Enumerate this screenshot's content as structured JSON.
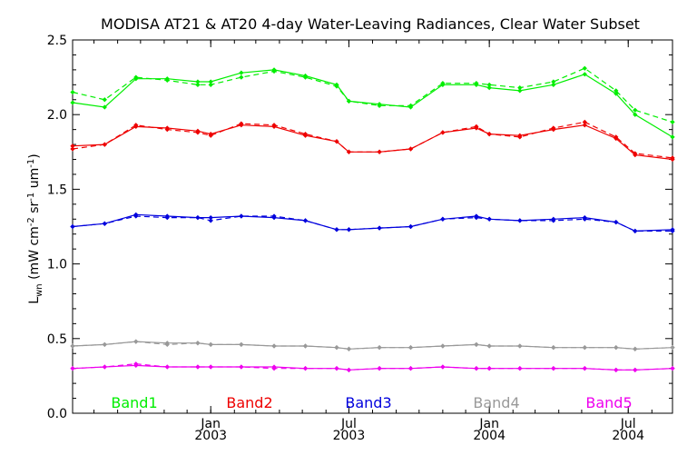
{
  "chart_data": {
    "type": "line",
    "title": "MODISA AT21 & AT20 4-day Water-Leaving Radiances, Clear Water Subset",
    "ylabel_main": "L",
    "ylabel_sub": "wn",
    "ylabel_rest": " (mW cm",
    "ylabel_sup1": "-2",
    "ylabel_mid": " sr",
    "ylabel_sup2": "-1",
    "ylabel_mid2": " um",
    "ylabel_sup3": "-1",
    "ylabel_end": ")",
    "ylim": [
      0.0,
      2.5
    ],
    "yticks": [
      "0.0",
      "0.5",
      "1.0",
      "1.5",
      "2.0",
      "2.5"
    ],
    "xlim": [
      "2002-07-04",
      "2004-08-28"
    ],
    "xticks": [
      {
        "date": "2003-01-01",
        "label1": "Jan",
        "label2": "2003"
      },
      {
        "date": "2003-07-01",
        "label1": "Jul",
        "label2": "2003"
      },
      {
        "date": "2004-01-01",
        "label1": "Jan",
        "label2": "2004"
      },
      {
        "date": "2004-07-01",
        "label1": "Jul",
        "label2": "2004"
      }
    ],
    "dates": [
      "2002-07-04",
      "2002-08-15",
      "2002-09-25",
      "2002-11-05",
      "2002-12-15",
      "2003-01-01",
      "2003-02-10",
      "2003-03-25",
      "2003-05-05",
      "2003-06-15",
      "2003-07-01",
      "2003-08-10",
      "2003-09-20",
      "2003-11-01",
      "2003-12-15",
      "2004-01-01",
      "2004-02-10",
      "2004-03-25",
      "2004-05-05",
      "2004-06-15",
      "2004-07-10",
      "2004-08-28"
    ],
    "series": [
      {
        "name": "Band1",
        "color": "#00ee00",
        "solid": [
          2.08,
          2.05,
          2.24,
          2.24,
          2.22,
          2.22,
          2.28,
          2.3,
          2.26,
          2.2,
          2.09,
          2.07,
          2.05,
          2.2,
          2.2,
          2.18,
          2.16,
          2.2,
          2.27,
          2.14,
          2.0,
          1.85
        ],
        "dashed": [
          2.15,
          2.1,
          2.25,
          2.23,
          2.2,
          2.2,
          2.25,
          2.29,
          2.25,
          2.19,
          2.09,
          2.06,
          2.06,
          2.21,
          2.21,
          2.2,
          2.18,
          2.22,
          2.31,
          2.16,
          2.03,
          1.95
        ]
      },
      {
        "name": "Band2",
        "color": "#ee0000",
        "solid": [
          1.79,
          1.8,
          1.92,
          1.91,
          1.89,
          1.87,
          1.93,
          1.92,
          1.86,
          1.82,
          1.75,
          1.75,
          1.77,
          1.88,
          1.91,
          1.87,
          1.86,
          1.9,
          1.93,
          1.84,
          1.73,
          1.7
        ],
        "dashed": [
          1.77,
          1.8,
          1.93,
          1.9,
          1.88,
          1.86,
          1.94,
          1.93,
          1.87,
          1.82,
          1.75,
          1.75,
          1.77,
          1.88,
          1.92,
          1.87,
          1.85,
          1.91,
          1.95,
          1.85,
          1.74,
          1.71
        ]
      },
      {
        "name": "Band3",
        "color": "#0000dd",
        "solid": [
          1.25,
          1.27,
          1.33,
          1.32,
          1.31,
          1.31,
          1.32,
          1.31,
          1.29,
          1.23,
          1.23,
          1.24,
          1.25,
          1.3,
          1.32,
          1.3,
          1.29,
          1.3,
          1.31,
          1.28,
          1.22,
          1.23
        ],
        "dashed": [
          1.25,
          1.27,
          1.32,
          1.31,
          1.31,
          1.29,
          1.32,
          1.32,
          1.29,
          1.23,
          1.23,
          1.24,
          1.25,
          1.3,
          1.31,
          1.3,
          1.29,
          1.29,
          1.3,
          1.28,
          1.22,
          1.22
        ]
      },
      {
        "name": "Band4",
        "color": "#999999",
        "solid": [
          0.45,
          0.46,
          0.48,
          0.47,
          0.47,
          0.46,
          0.46,
          0.45,
          0.45,
          0.44,
          0.43,
          0.44,
          0.44,
          0.45,
          0.46,
          0.45,
          0.45,
          0.44,
          0.44,
          0.44,
          0.43,
          0.44
        ],
        "dashed": [
          0.45,
          0.46,
          0.48,
          0.46,
          0.47,
          0.46,
          0.46,
          0.45,
          0.45,
          0.44,
          0.43,
          0.44,
          0.44,
          0.45,
          0.46,
          0.45,
          0.45,
          0.44,
          0.44,
          0.44,
          0.43,
          0.44
        ]
      },
      {
        "name": "Band5",
        "color": "#ee00ee",
        "solid": [
          0.3,
          0.31,
          0.32,
          0.31,
          0.31,
          0.31,
          0.31,
          0.31,
          0.3,
          0.3,
          0.29,
          0.3,
          0.3,
          0.31,
          0.3,
          0.3,
          0.3,
          0.3,
          0.3,
          0.29,
          0.29,
          0.3
        ],
        "dashed": [
          0.3,
          0.31,
          0.33,
          0.31,
          0.31,
          0.31,
          0.31,
          0.3,
          0.3,
          0.3,
          0.29,
          0.3,
          0.3,
          0.31,
          0.3,
          0.3,
          0.3,
          0.3,
          0.3,
          0.29,
          0.29,
          0.3
        ]
      }
    ]
  }
}
